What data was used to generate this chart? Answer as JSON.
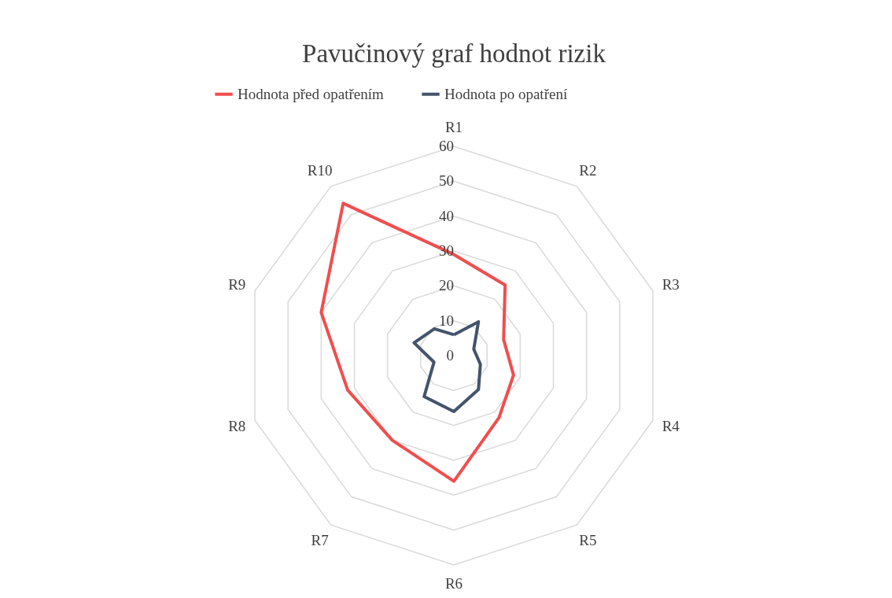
{
  "chart_data": {
    "type": "radar",
    "title": "Pavučinový graf hodnot rizik",
    "categories": [
      "R1",
      "R2",
      "R3",
      "R4",
      "R5",
      "R6",
      "R7",
      "R8",
      "R9",
      "R10"
    ],
    "series": [
      {
        "name": "Hodnota před opatřením",
        "color": "#f04e4e",
        "values": [
          29,
          25,
          15,
          18,
          22,
          36,
          30,
          32,
          40,
          54
        ]
      },
      {
        "name": "Hodnota po opatření",
        "color": "#44546a",
        "values": [
          6,
          12,
          6,
          8,
          12,
          16,
          14.5,
          6,
          12,
          9.5
        ]
      }
    ],
    "ylim": [
      0,
      60
    ],
    "yticks": [
      0,
      10,
      20,
      30,
      40,
      50,
      60
    ],
    "grid": true,
    "legend": "top"
  }
}
